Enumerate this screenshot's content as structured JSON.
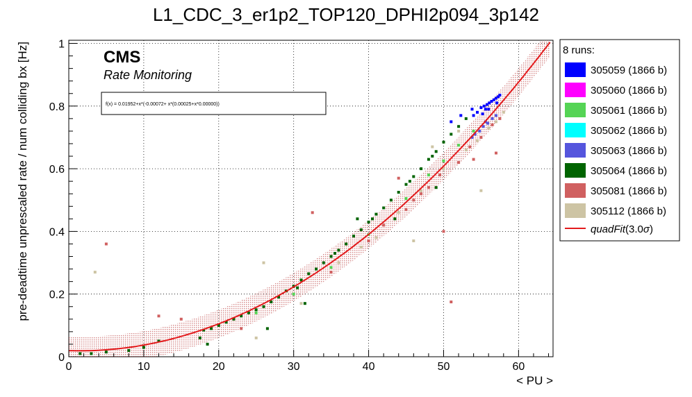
{
  "chart_data": {
    "type": "scatter",
    "title": "L1_CDC_3_er1p2_TOP120_DPHI2p094_3p142",
    "xlabel": "< PU >",
    "ylabel": "pre-deadtime unprescaled rate / num colliding bx [Hz]",
    "xlim": [
      0,
      64.6
    ],
    "ylim": [
      0,
      1.01
    ],
    "x_ticks": [
      "0",
      "10",
      "20",
      "30",
      "40",
      "50",
      "60"
    ],
    "y_ticks": [
      "0",
      "0.2",
      "0.4",
      "0.6",
      "0.8",
      "1"
    ],
    "grid": true,
    "legend_placement": "right, outside plot",
    "legend_header": "8 runs:",
    "logo_text": "CMS",
    "logo_subtext": "Rate Monitoring",
    "fit_formula": "f(x) = 0.01952+x*(-0.00072+ x*(0.00025+x*0.00000))",
    "fit": {
      "name": "quadFit(3.0σ)",
      "name_main": "quadFit",
      "name_arg": "(3.0",
      "name_sigma": "σ",
      "name_close": ")",
      "coefficients": [
        0.01952,
        -0.00072,
        0.00025,
        0.0
      ],
      "band_halfwidth": 0.045,
      "x_range": [
        0,
        64.2
      ],
      "color": "#e31a1c"
    },
    "series": [
      {
        "name": "305059 (1866 b)",
        "color": "#0000ff",
        "points": [
          [
            53.8,
            0.79
          ],
          [
            54.5,
            0.78
          ],
          [
            55.0,
            0.795
          ],
          [
            55.4,
            0.8
          ],
          [
            55.8,
            0.805
          ],
          [
            56.1,
            0.81
          ],
          [
            56.4,
            0.815
          ],
          [
            56.7,
            0.82
          ],
          [
            57.0,
            0.825
          ],
          [
            57.3,
            0.83
          ],
          [
            57.5,
            0.835
          ],
          [
            55.2,
            0.775
          ],
          [
            56.0,
            0.79
          ],
          [
            57.1,
            0.81
          ],
          [
            51.0,
            0.75
          ],
          [
            52.3,
            0.77
          ],
          [
            55.6,
            0.79
          ],
          [
            54.0,
            0.77
          ]
        ]
      },
      {
        "name": "305060 (1866 b)",
        "color": "#ff00ff",
        "points": []
      },
      {
        "name": "305061 (1866 b)",
        "color": "#55d455",
        "points": [
          [
            25.0,
            0.14
          ],
          [
            30.0,
            0.2
          ],
          [
            35.0,
            0.285
          ],
          [
            40.0,
            0.39
          ],
          [
            45.0,
            0.505
          ],
          [
            48.0,
            0.58
          ],
          [
            50.0,
            0.625
          ],
          [
            52.0,
            0.675
          ],
          [
            54.0,
            0.72
          ]
        ]
      },
      {
        "name": "305062 (1866 b)",
        "color": "#00ffff",
        "points": []
      },
      {
        "name": "305063 (1866 b)",
        "color": "#5555dd",
        "points": [
          [
            54.8,
            0.72
          ],
          [
            55.3,
            0.735
          ],
          [
            55.9,
            0.745
          ],
          [
            56.5,
            0.76
          ],
          [
            57.0,
            0.77
          ],
          [
            54.2,
            0.71
          ],
          [
            53.8,
            0.7
          ],
          [
            55.6,
            0.75
          ]
        ]
      },
      {
        "name": "305064 (1866 b)",
        "color": "#006400",
        "points": [
          [
            1.5,
            0.01
          ],
          [
            3.0,
            0.01
          ],
          [
            5.0,
            0.015
          ],
          [
            8.0,
            0.02
          ],
          [
            10.0,
            0.03
          ],
          [
            12.0,
            0.05
          ],
          [
            18.0,
            0.085
          ],
          [
            19.0,
            0.09
          ],
          [
            20.0,
            0.1
          ],
          [
            21.0,
            0.11
          ],
          [
            22.0,
            0.12
          ],
          [
            23.0,
            0.13
          ],
          [
            24.0,
            0.14
          ],
          [
            25.0,
            0.15
          ],
          [
            26.0,
            0.16
          ],
          [
            27.0,
            0.175
          ],
          [
            28.0,
            0.19
          ],
          [
            29.0,
            0.21
          ],
          [
            30.0,
            0.225
          ],
          [
            31.0,
            0.245
          ],
          [
            32.0,
            0.265
          ],
          [
            33.0,
            0.28
          ],
          [
            34.0,
            0.3
          ],
          [
            35.0,
            0.32
          ],
          [
            36.0,
            0.34
          ],
          [
            37.0,
            0.36
          ],
          [
            38.0,
            0.385
          ],
          [
            39.0,
            0.405
          ],
          [
            40.0,
            0.43
          ],
          [
            41.0,
            0.455
          ],
          [
            42.0,
            0.475
          ],
          [
            43.0,
            0.5
          ],
          [
            44.0,
            0.525
          ],
          [
            45.0,
            0.55
          ],
          [
            46.0,
            0.575
          ],
          [
            47.0,
            0.6
          ],
          [
            48.0,
            0.63
          ],
          [
            49.0,
            0.655
          ],
          [
            50.0,
            0.685
          ],
          [
            51.0,
            0.71
          ],
          [
            52.0,
            0.735
          ],
          [
            53.0,
            0.76
          ],
          [
            30.5,
            0.22
          ],
          [
            35.5,
            0.33
          ],
          [
            40.5,
            0.44
          ],
          [
            45.5,
            0.56
          ],
          [
            48.5,
            0.64
          ],
          [
            17.5,
            0.06
          ],
          [
            18.5,
            0.04
          ],
          [
            43.5,
            0.44
          ],
          [
            49.0,
            0.54
          ],
          [
            31.5,
            0.17
          ],
          [
            26.5,
            0.09
          ],
          [
            38.5,
            0.44
          ]
        ]
      },
      {
        "name": "305081 (1866 b)",
        "color": "#d06060",
        "points": [
          [
            5.0,
            0.36
          ],
          [
            12.0,
            0.13
          ],
          [
            15.0,
            0.12
          ],
          [
            23.0,
            0.09
          ],
          [
            32.5,
            0.46
          ],
          [
            44.0,
            0.57
          ],
          [
            47.0,
            0.52
          ],
          [
            50.0,
            0.4
          ],
          [
            51.0,
            0.175
          ],
          [
            54.0,
            0.63
          ],
          [
            57.0,
            0.65
          ],
          [
            35.0,
            0.27
          ],
          [
            40.0,
            0.37
          ],
          [
            45.0,
            0.47
          ],
          [
            48.0,
            0.54
          ],
          [
            52.0,
            0.62
          ],
          [
            55.0,
            0.7
          ],
          [
            56.5,
            0.74
          ],
          [
            57.5,
            0.76
          ],
          [
            42.0,
            0.42
          ],
          [
            46.0,
            0.5
          ],
          [
            49.5,
            0.58
          ],
          [
            53.5,
            0.67
          ]
        ]
      },
      {
        "name": "305112 (1866 b)",
        "color": "#cdc4a4",
        "points": [
          [
            3.5,
            0.27
          ],
          [
            25.0,
            0.06
          ],
          [
            26.0,
            0.3
          ],
          [
            31.0,
            0.17
          ],
          [
            41.0,
            0.38
          ],
          [
            46.0,
            0.37
          ],
          [
            55.0,
            0.53
          ],
          [
            48.5,
            0.67
          ],
          [
            52.0,
            0.72
          ],
          [
            36.0,
            0.3
          ],
          [
            39.0,
            0.35
          ],
          [
            44.0,
            0.46
          ],
          [
            47.0,
            0.53
          ],
          [
            50.0,
            0.6
          ],
          [
            53.0,
            0.66
          ],
          [
            56.0,
            0.73
          ],
          [
            57.0,
            0.75
          ],
          [
            54.5,
            0.69
          ],
          [
            58.0,
            0.78
          ]
        ]
      }
    ]
  }
}
